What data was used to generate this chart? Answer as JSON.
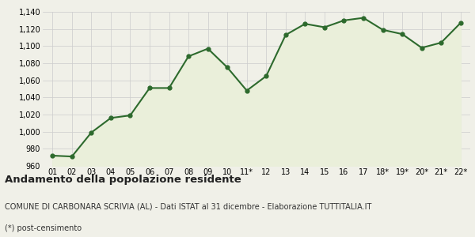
{
  "x_labels": [
    "01",
    "02",
    "03",
    "04",
    "05",
    "06",
    "07",
    "08",
    "09",
    "10",
    "11*",
    "12",
    "13",
    "14",
    "15",
    "16",
    "17",
    "18*",
    "19*",
    "20*",
    "21*",
    "22*"
  ],
  "y_values": [
    972,
    971,
    999,
    1016,
    1019,
    1051,
    1051,
    1088,
    1097,
    1075,
    1048,
    1065,
    1113,
    1126,
    1122,
    1130,
    1133,
    1119,
    1114,
    1098,
    1104,
    1127
  ],
  "y_min": 960,
  "y_max": 1140,
  "line_color": "#2d6a2d",
  "fill_color": "#eaefda",
  "marker_color": "#2d6a2d",
  "bg_color": "#f0f0e8",
  "grid_color": "#cccccc",
  "title": "Andamento della popolazione residente",
  "subtitle": "COMUNE DI CARBONARA SCRIVIA (AL) - Dati ISTAT al 31 dicembre - Elaborazione TUTTITALIA.IT",
  "footnote": "(*) post-censimento",
  "title_fontsize": 9.5,
  "subtitle_fontsize": 7,
  "footnote_fontsize": 7,
  "tick_fontsize": 7
}
